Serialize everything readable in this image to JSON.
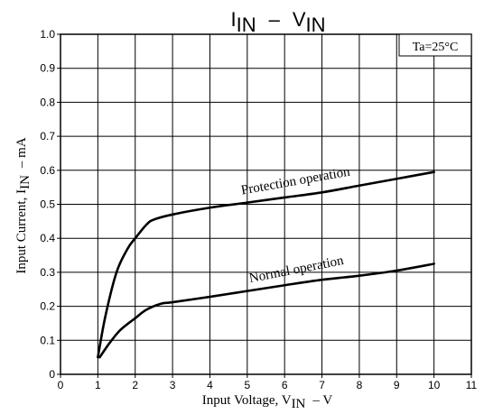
{
  "chart_data": {
    "type": "line",
    "title": {
      "main": "I",
      "sub": "IN",
      "sep": "–",
      "main2": "V",
      "sub2": "IN"
    },
    "xlabel": {
      "prefix": "Input Voltage, V",
      "sub": "IN",
      "suffix": "–  V"
    },
    "ylabel": {
      "prefix": "Input Current, I",
      "sub": "IN",
      "suffix": "–  mA"
    },
    "condition": "Ta=25°C",
    "xlim": [
      0,
      11
    ],
    "ylim": [
      0,
      1.0
    ],
    "x_ticks": [
      0,
      1,
      2,
      3,
      4,
      5,
      6,
      7,
      8,
      9,
      10,
      11
    ],
    "y_ticks": [
      0,
      0.1,
      0.2,
      0.3,
      0.4,
      0.5,
      0.6,
      0.7,
      0.8,
      0.9,
      1.0
    ],
    "x_tick_labels": [
      "0",
      "1",
      "2",
      "3",
      "4",
      "5",
      "6",
      "7",
      "8",
      "9",
      "10",
      "11"
    ],
    "y_tick_labels": [
      "0",
      "0.1",
      "0.2",
      "0.3",
      "0.4",
      "0.5",
      "0.6",
      "0.7",
      "0.8",
      "0.9",
      "1.0"
    ],
    "grid": true,
    "series": [
      {
        "name": "Protection operation",
        "x": [
          1.0,
          1.2,
          1.5,
          1.8,
          2.0,
          2.3,
          2.5,
          3.0,
          4.0,
          5.0,
          6.0,
          7.0,
          8.0,
          9.0,
          10.0
        ],
        "y": [
          0.05,
          0.17,
          0.3,
          0.37,
          0.4,
          0.44,
          0.455,
          0.47,
          0.49,
          0.505,
          0.52,
          0.535,
          0.555,
          0.575,
          0.595
        ]
      },
      {
        "name": "Normal operation",
        "x": [
          1.05,
          1.3,
          1.6,
          2.0,
          2.3,
          2.7,
          3.0,
          4.0,
          5.0,
          6.0,
          7.0,
          8.0,
          9.0,
          10.0
        ],
        "y": [
          0.05,
          0.09,
          0.13,
          0.165,
          0.19,
          0.208,
          0.212,
          0.228,
          0.245,
          0.262,
          0.278,
          0.29,
          0.305,
          0.325
        ]
      }
    ]
  }
}
